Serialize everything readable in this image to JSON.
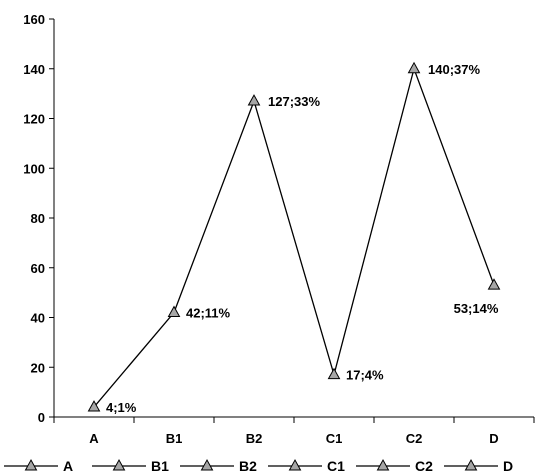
{
  "chart_data": {
    "type": "line",
    "categories": [
      "A",
      "B1",
      "B2",
      "C1",
      "C2",
      "D"
    ],
    "values": [
      4,
      42,
      127,
      17,
      140,
      53
    ],
    "data_labels": [
      "4;1%",
      "42;11%",
      "127;33%",
      "17;4%",
      "140;37%",
      "53;14%"
    ],
    "legend": [
      "A",
      "B1",
      "B2",
      "C1",
      "C2",
      "D"
    ],
    "legend_placement": "bottom",
    "ylim": [
      0,
      160
    ],
    "yticks": [
      0,
      20,
      40,
      60,
      80,
      100,
      120,
      140,
      160
    ],
    "grid": false,
    "marker": "triangle",
    "colors": {
      "line": "#000000",
      "marker_fill": "#a6a6a6",
      "marker_stroke": "#000000"
    }
  }
}
